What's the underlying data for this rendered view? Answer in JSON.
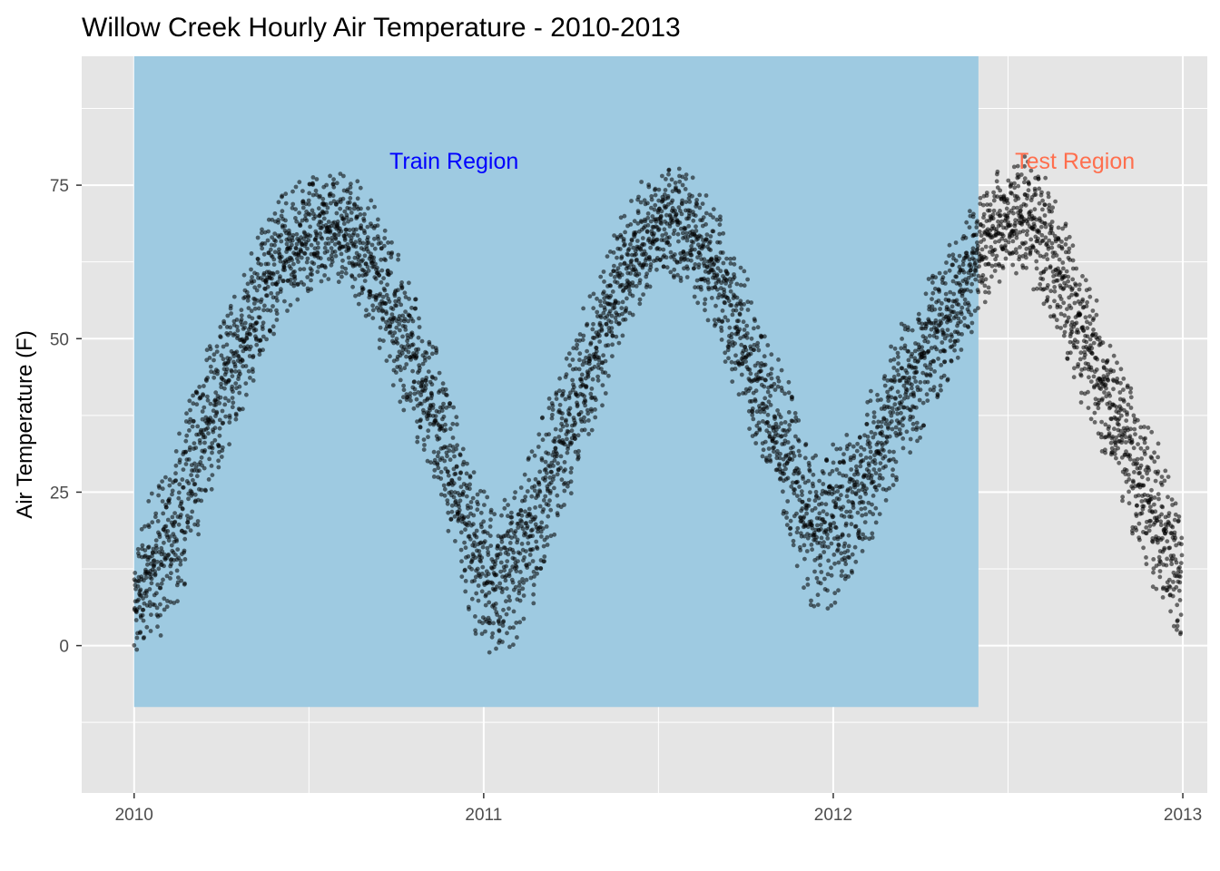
{
  "chart_data": {
    "type": "scatter",
    "title": "Willow Creek Hourly Air Temperature - 2010-2013",
    "xlabel": "",
    "ylabel": "Air Temperature (F)",
    "x_unit": "year",
    "xlim": [
      2009.85,
      2013.07
    ],
    "ylim": [
      -24,
      96
    ],
    "x_ticks": [
      "2010",
      "2011",
      "2012",
      "2013"
    ],
    "y_ticks": [
      "0",
      "25",
      "50",
      "75"
    ],
    "grid": true,
    "legend": "none",
    "colors": {
      "panel": "#e5e5e5",
      "grid": "#ffffff",
      "train_region": "#9ecae1",
      "train_label": "#0000ff",
      "test_label": "#ff6f4e",
      "points": "#000000"
    },
    "regions": [
      {
        "label": "Train Region",
        "x_range": [
          "2010-01-01",
          "2012-06-01"
        ],
        "y_range": [
          -10,
          96
        ]
      }
    ],
    "annotations": [
      {
        "text": "Train Region",
        "x": "2010-12-01",
        "y": 79,
        "color": "#0000ff"
      },
      {
        "text": "Test Region",
        "x": "2012-09-10",
        "y": 79,
        "color": "#ff6f4e"
      }
    ],
    "series": [
      {
        "x": [
          "2010-01-01",
          "2010-01-15",
          "2010-02-01",
          "2010-02-15",
          "2010-03-01",
          "2010-03-15",
          "2010-04-01",
          "2010-04-15",
          "2010-05-01",
          "2010-05-15",
          "2010-06-01",
          "2010-06-15",
          "2010-07-01",
          "2010-07-15",
          "2010-08-01",
          "2010-08-15",
          "2010-09-01",
          "2010-09-15",
          "2010-10-01",
          "2010-10-15",
          "2010-11-01",
          "2010-11-15",
          "2010-12-01",
          "2010-12-15",
          "2011-01-01",
          "2011-01-15",
          "2011-02-01",
          "2011-02-15",
          "2011-03-01",
          "2011-03-15",
          "2011-04-01",
          "2011-04-15",
          "2011-05-01",
          "2011-05-15",
          "2011-06-01",
          "2011-06-15",
          "2011-07-01",
          "2011-07-15",
          "2011-08-01",
          "2011-08-15",
          "2011-09-01",
          "2011-09-15",
          "2011-10-01",
          "2011-10-15",
          "2011-11-01",
          "2011-11-15",
          "2011-12-01",
          "2011-12-15",
          "2012-01-01",
          "2012-01-15",
          "2012-02-01",
          "2012-02-15",
          "2012-03-01",
          "2012-03-15",
          "2012-04-01",
          "2012-04-15",
          "2012-05-01",
          "2012-05-15",
          "2012-06-01",
          "2012-06-15",
          "2012-07-01",
          "2012-07-15",
          "2012-08-01",
          "2012-08-15",
          "2012-09-01",
          "2012-09-15",
          "2012-10-01",
          "2012-10-15",
          "2012-11-01",
          "2012-11-15",
          "2012-12-01",
          "2012-12-15",
          "2012-12-31"
        ],
        "y": [
          5,
          12,
          15,
          20,
          27,
          35,
          41,
          46,
          51,
          58,
          63,
          65,
          67,
          68,
          68,
          67,
          63,
          59,
          53,
          48,
          42,
          36,
          27,
          18,
          12,
          10,
          13,
          18,
          23,
          30,
          37,
          43,
          48,
          55,
          62,
          66,
          68,
          69,
          68,
          65,
          61,
          55,
          49,
          42,
          36,
          31,
          22,
          18,
          20,
          22,
          26,
          31,
          37,
          42,
          45,
          50,
          54,
          59,
          63,
          67,
          69,
          70,
          68,
          64,
          58,
          52,
          46,
          40,
          34,
          28,
          22,
          17,
          10
        ],
        "y_spread": [
          9,
          12,
          14,
          14,
          14,
          14,
          13,
          12,
          12,
          12,
          11,
          10,
          10,
          9,
          9,
          10,
          11,
          11,
          12,
          12,
          12,
          12,
          13,
          13,
          14,
          14,
          14,
          14,
          14,
          13,
          13,
          12,
          12,
          11,
          11,
          10,
          9,
          9,
          10,
          10,
          11,
          11,
          12,
          12,
          12,
          13,
          13,
          14,
          14,
          13,
          13,
          13,
          13,
          12,
          12,
          12,
          11,
          11,
          10,
          10,
          10,
          10,
          11,
          11,
          12,
          12,
          12,
          12,
          12,
          13,
          13,
          13,
          11
        ]
      }
    ]
  }
}
